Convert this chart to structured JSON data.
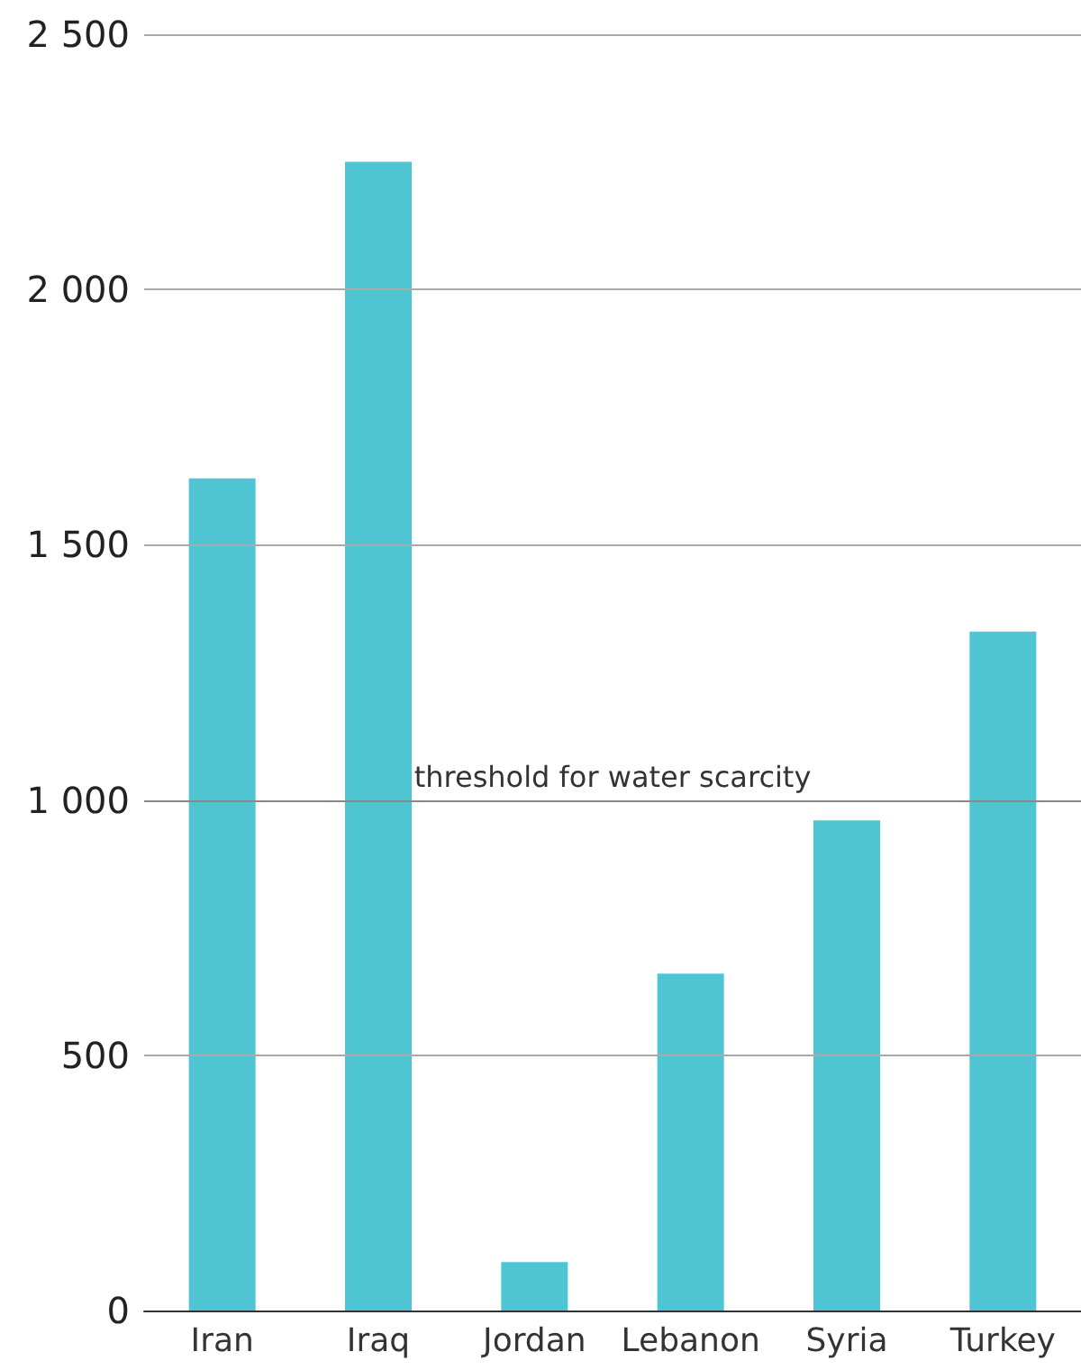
{
  "chart_data": {
    "type": "bar",
    "categories": [
      "Iran",
      "Iraq",
      "Jordan",
      "Lebanon",
      "Syria",
      "Turkey"
    ],
    "values": [
      1630,
      2250,
      95,
      660,
      960,
      1330
    ],
    "color": "#4fc4d2",
    "ylim": [
      0,
      2500
    ],
    "yticks": [
      0,
      500,
      {
        "value": 1000,
        "label": "1 000"
      },
      {
        "value": 1500,
        "label": "1 500"
      },
      {
        "value": 2000,
        "label": "2 000"
      },
      {
        "value": 2500,
        "label": "2 500"
      }
    ],
    "grid": "y",
    "ref_lines": [
      {
        "axis": "y",
        "value": 1000,
        "label": "threshold for water scarcity",
        "color": "#888888"
      }
    ]
  }
}
